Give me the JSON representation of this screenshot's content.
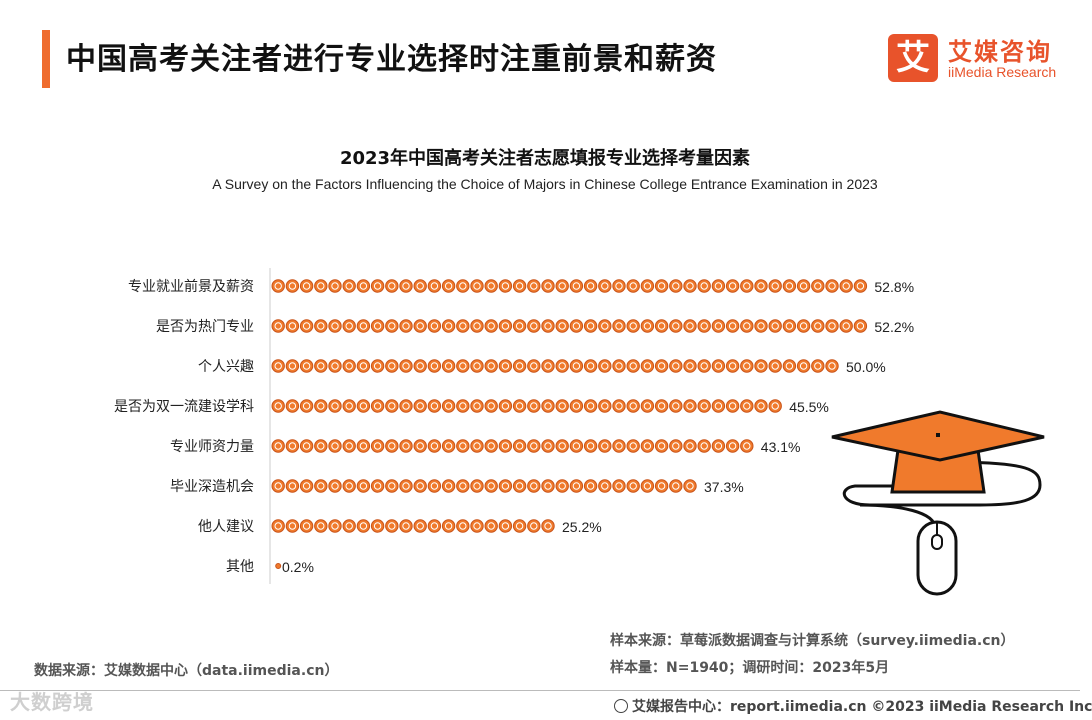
{
  "page": {
    "title": "中国高考关注者进行专业选择时注重前景和薪资"
  },
  "logo": {
    "mark": "艾",
    "name_cn": "艾媒咨询",
    "name_en": "iiMedia Research"
  },
  "chart_data": {
    "type": "bar",
    "orientation": "horizontal",
    "title": "2023年中国高考关注者志愿填报专业选择考量因素",
    "subtitle": "A Survey on the Factors Influencing the Choice of Majors in Chinese College Entrance Examination in 2023",
    "categories": [
      "专业就业前景及薪资",
      "是否为热门专业",
      "个人兴趣",
      "是否为双一流建设学科",
      "专业师资力量",
      "毕业深造机会",
      "他人建议",
      "其他"
    ],
    "values": [
      52.8,
      52.2,
      50.0,
      45.5,
      43.1,
      37.3,
      25.2,
      0.2
    ],
    "value_labels": [
      "52.8%",
      "52.2%",
      "50.0%",
      "45.5%",
      "43.1%",
      "37.3%",
      "25.2%",
      "0.2%"
    ],
    "unit": "%",
    "bar_style": "row of coin icons",
    "colors": {
      "accent": "#ef6c2e",
      "coin": "#f07a2c",
      "coin_edge": "#c9541a"
    }
  },
  "footer": {
    "data_source": "数据来源：艾媒数据中心（data.iimedia.cn）",
    "sample_source": "样本来源：草莓派数据调查与计算系统（survey.iimedia.cn）",
    "sample_info": "样本量：N=1940；调研时间：2023年5月",
    "credit": "艾媒报告中心：report.iimedia.cn  ©2023  iiMedia Research  Inc",
    "credit_icon": "globe-icon",
    "watermark": "大数跨境"
  }
}
